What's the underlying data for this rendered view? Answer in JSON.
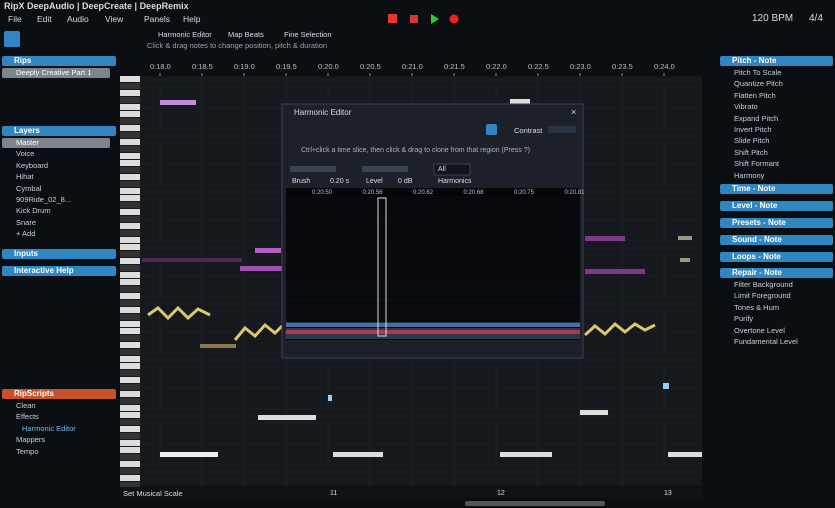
{
  "title_bar": {
    "title": "RipX DeepAudio | DeepCreate | DeepRemix",
    "menu": [
      "File",
      "Edit",
      "Audio",
      "View",
      "Panels",
      "Help"
    ],
    "tempo": "120 BPM",
    "meter": "4/4"
  },
  "toolbar": {
    "buttons": [
      "Harmonic Editor",
      "Map Beats",
      "Fine Selection"
    ],
    "hint": "Click & drag notes to change position, pitch & duration"
  },
  "timeline": {
    "ticks": [
      "0:18.0",
      "0:18.5",
      "0:19.0",
      "0:19.5",
      "0:20.0",
      "0:20.5",
      "0:21.0",
      "0:21.5",
      "0:22.0",
      "0:22.5",
      "0:23.0",
      "0:23.5",
      "0:24.0"
    ],
    "bar_markers": [
      "11",
      "12",
      "13"
    ],
    "status": "Set Musical Scale"
  },
  "left_panel": {
    "rips": {
      "header": "Rips",
      "items": [
        "Deeply Creative Part 1"
      ]
    },
    "layers": {
      "header": "Layers",
      "items": [
        "Master",
        "Voice",
        "Keyboard",
        "Hihat",
        "Cymbal",
        "909Ride_02_8...",
        "Kick Drum",
        "Snare",
        "+ Add"
      ]
    },
    "inputs": {
      "header": "Inputs",
      "items": []
    },
    "help": {
      "header": "Interactive Help",
      "items": []
    },
    "ripscripts": {
      "header": "RipScripts",
      "items": [
        "Clean",
        "Effects",
        "Harmonic Editor",
        "Mappers",
        "Tempo"
      ]
    }
  },
  "harmonic_editor": {
    "title": "Harmonic Editor",
    "contrast": "Contrast",
    "hint": "Ctrl+click a time slice, then click & drag to clone from that region  (Press ?)",
    "brush": "Brush",
    "brush_value": "0.20 s",
    "level": "Level",
    "level_value": "0 dB",
    "mode": "All",
    "harmonics": "Harmonics",
    "ticks": [
      "0:20.50",
      "0:20.56",
      "0:20.62",
      "0:20.68",
      "0:20.75",
      "0:20.81"
    ]
  },
  "right_panel": {
    "sections": [
      {
        "header": "Pitch - Note",
        "items": [
          "Pitch To Scale",
          "Quantize Pitch",
          "Flatten Pitch",
          "Vibrato",
          "Expand Pitch",
          "Invert Pitch",
          "Slide Pitch",
          "Shift Pitch",
          "Shift Formant",
          "Harmony"
        ]
      },
      {
        "header": "Time - Note",
        "items": []
      },
      {
        "header": "Level - Note",
        "items": []
      },
      {
        "header": "Presets - Note",
        "items": []
      },
      {
        "header": "Sound - Note",
        "items": []
      },
      {
        "header": "Loops - Note",
        "items": []
      },
      {
        "header": "Repair - Note",
        "items": [
          "Filter Background",
          "Limit Foreground",
          "Tones & Hum",
          "Purify",
          "Overtone Level",
          "Fundamental Level"
        ]
      }
    ]
  }
}
